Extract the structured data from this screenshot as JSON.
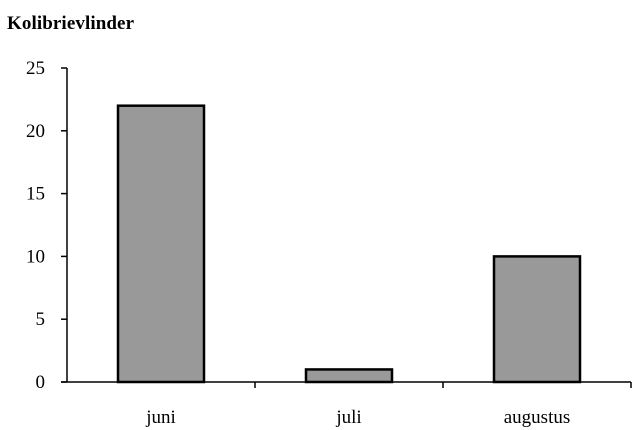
{
  "chart_data": {
    "type": "bar",
    "title": "Kolibrievlinder",
    "categories": [
      "juni",
      "juli",
      "augustus"
    ],
    "values": [
      22,
      1,
      10
    ],
    "xlabel": "",
    "ylabel": "",
    "ylim": [
      0,
      25
    ],
    "yticks": [
      "0",
      "5",
      "10",
      "15",
      "20",
      "25"
    ],
    "grid": false,
    "legend": "none",
    "colors": {
      "bar_fill": "#999999",
      "bar_stroke": "#000000",
      "axis": "#000000"
    }
  }
}
